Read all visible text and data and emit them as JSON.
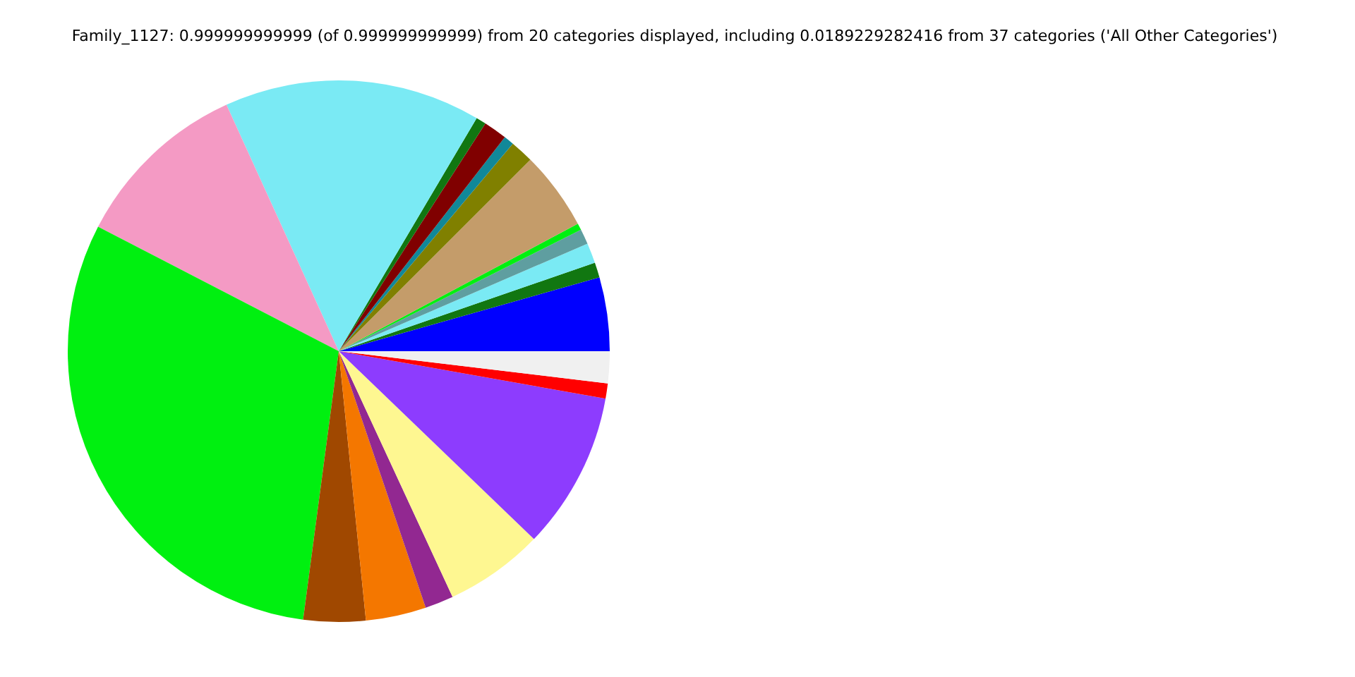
{
  "chart_data": {
    "type": "pie",
    "title": "Family_1127: 0.999999999999 (of 0.999999999999) from 20 categories displayed, including 0.0189229282416 from 37 categories ('All Other Categories')",
    "categories": [
      null,
      null,
      null,
      null,
      null,
      null,
      null,
      null,
      null,
      null,
      null,
      null,
      null,
      null,
      null,
      null,
      null,
      null,
      null,
      null
    ],
    "values": [
      4.4,
      0.9,
      1.2,
      0.9,
      0.4,
      4.7,
      1.4,
      0.6,
      1.4,
      0.6,
      15.3,
      10.6,
      30.5,
      3.7,
      3.6,
      1.7,
      5.9,
      9.4,
      0.9,
      1.9
    ],
    "colors": [
      "#0000ff",
      "#117711",
      "#7aeaf4",
      "#5f9ea0",
      "#00f010",
      "#c49c6a",
      "#808000",
      "#118899",
      "#800000",
      "#117711",
      "#7aeaf4",
      "#f49ac4",
      "#00f010",
      "#a04800",
      "#f47700",
      "#922891",
      "#fef791",
      "#8d3cfe",
      "#ff0000",
      "#f0f0f0"
    ],
    "legend": false
  }
}
